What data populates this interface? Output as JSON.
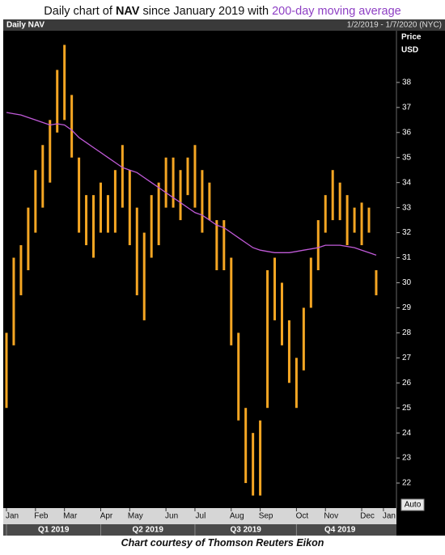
{
  "title_parts": [
    "Daily chart of ",
    "NAV",
    " since January 2019 with ",
    "200-day moving average"
  ],
  "caption": "Chart courtesy of Thomson Reuters Eikon",
  "chart_data": {
    "type": "range-bar",
    "name": "Daily NAV",
    "date_range": "1/2/2019 - 1/7/2020 (NYC)",
    "y_label": [
      "Price",
      "USD"
    ],
    "auto_label": "Auto",
    "bar_color": "#f5a623",
    "ma_color": "#c05ad8",
    "categories": [
      "Jan",
      null,
      null,
      null,
      "Feb",
      null,
      null,
      null,
      "Mar",
      null,
      null,
      null,
      null,
      "Apr",
      null,
      null,
      null,
      "May",
      null,
      null,
      null,
      null,
      "Jun",
      null,
      null,
      null,
      "Jul",
      null,
      null,
      null,
      null,
      "Aug",
      null,
      null,
      null,
      "Sep",
      null,
      null,
      null,
      null,
      "Oct",
      null,
      null,
      null,
      "Nov",
      null,
      null,
      null,
      null,
      "Dec",
      null,
      null,
      "Jan",
      null
    ],
    "high": [
      28,
      31,
      31.5,
      33,
      34.5,
      35.5,
      36.5,
      38.5,
      39.5,
      37.5,
      35,
      33.5,
      33.5,
      34,
      33.5,
      34.5,
      35.5,
      34.5,
      33,
      32,
      33.5,
      34,
      35,
      35,
      34.5,
      35,
      35.5,
      34.5,
      34,
      32.5,
      32.5,
      31,
      28,
      25,
      24,
      24.5,
      30.5,
      31,
      30,
      28.5,
      27,
      29,
      31,
      32.5,
      33.5,
      34.5,
      34,
      33.5,
      33,
      33.2,
      33,
      30.5,
      null,
      null
    ],
    "low": [
      25,
      27.5,
      29.5,
      30.5,
      32,
      33,
      34,
      36,
      36.5,
      35,
      32,
      31.5,
      31,
      32,
      32,
      32,
      33,
      31.5,
      29.5,
      28.5,
      31,
      31.5,
      33,
      33,
      32.5,
      33.5,
      33,
      32,
      32.5,
      30.5,
      30.5,
      27.5,
      24.5,
      22,
      21.5,
      21.5,
      25,
      28.5,
      27.5,
      26,
      25,
      26.5,
      29,
      30.5,
      32,
      32.5,
      32.5,
      31.5,
      32,
      31.5,
      32,
      29.5,
      null,
      null
    ],
    "ma": [
      36.8,
      36.75,
      36.7,
      36.6,
      36.5,
      36.4,
      36.3,
      36.35,
      36.3,
      36.1,
      35.8,
      35.6,
      35.4,
      35.2,
      35.0,
      34.8,
      34.6,
      34.5,
      34.4,
      34.2,
      34.0,
      33.8,
      33.6,
      33.4,
      33.2,
      33.0,
      32.8,
      32.7,
      32.5,
      32.3,
      32.2,
      32.0,
      31.8,
      31.6,
      31.4,
      31.3,
      31.25,
      31.2,
      31.2,
      31.2,
      31.25,
      31.3,
      31.35,
      31.4,
      31.5,
      31.5,
      31.5,
      31.45,
      31.4,
      31.3,
      31.2,
      31.1,
      null,
      null
    ],
    "quarters": [
      "Q1 2019",
      "Q2 2019",
      "Q3 2019",
      "Q4 2019"
    ],
    "ylim": [
      21,
      40
    ],
    "yticks": [
      22,
      23,
      24,
      25,
      26,
      27,
      28,
      29,
      30,
      31,
      32,
      33,
      34,
      35,
      36,
      37,
      38
    ],
    "grid": false
  }
}
